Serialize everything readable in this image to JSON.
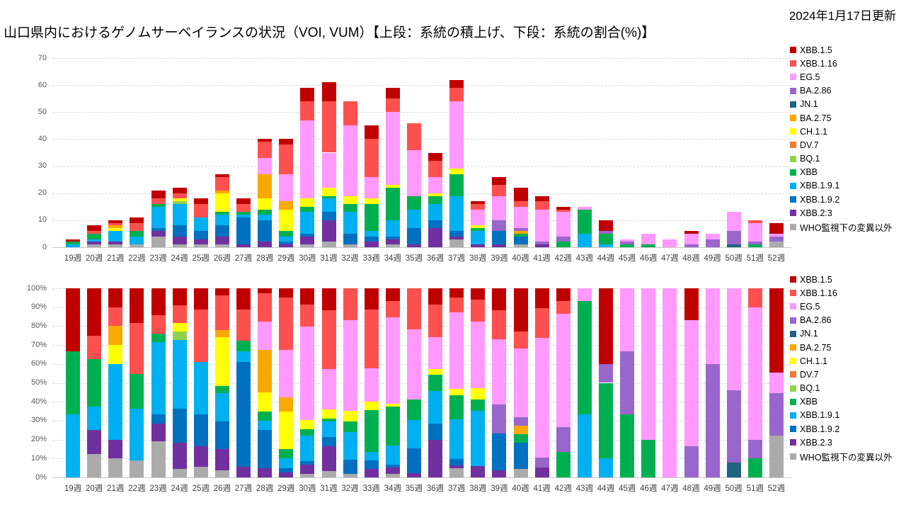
{
  "header": {
    "date_updated": "2024年1月17日更新",
    "title": "山口県内におけるゲノムサーベイランスの状況（VOI, VUM）【上段：系統の積上げ、下段：系統の割合(%)】"
  },
  "palette": {
    "XBB.1.5": "#C00000",
    "XBB.1.16": "#FF5050",
    "EG.5": "#FF99FF",
    "BA.2.86": "#9966CC",
    "JN.1": "#1F6384",
    "BA.2.75": "#F9A800",
    "CH.1.1": "#FFFF00",
    "DV.7": "#ED7D31",
    "BQ.1": "#92D050",
    "XBB": "#00B050",
    "XBB.1.9.1": "#00B0F0",
    "XBB.1.9.2": "#0070C0",
    "XBB.2.3": "#7030A0",
    "WHO監視下の変異以外": "#ABABAB"
  },
  "legend": {
    "entries": [
      "XBB.1.5",
      "XBB.1.16",
      "EG.5",
      "BA.2.86",
      "JN.1",
      "BA.2.75",
      "CH.1.1",
      "DV.7",
      "BQ.1",
      "XBB",
      "XBB.1.9.1",
      "XBB.1.9.2",
      "XBB.2.3",
      "WHO監視下の変異以外"
    ]
  },
  "axes": {
    "top": {
      "tick_labels": [
        "0",
        "10",
        "20",
        "30",
        "40",
        "50",
        "60",
        "70"
      ],
      "max": 70
    },
    "bottom": {
      "tick_labels": [
        "0%",
        "10%",
        "20%",
        "30%",
        "40%",
        "50%",
        "60%",
        "70%",
        "80%",
        "90%",
        "100%"
      ],
      "max": 100
    }
  },
  "chart_data": [
    {
      "type": "bar",
      "stacked": true,
      "panel_label": "上段：系統の積上げ",
      "ylim": [
        0,
        70
      ],
      "grid": true,
      "legend_position": "right",
      "categories": [
        "19週",
        "20週",
        "21週",
        "22週",
        "23週",
        "24週",
        "25週",
        "26週",
        "27週",
        "28週",
        "29週",
        "30週",
        "31週",
        "32週",
        "33週",
        "34週",
        "35週",
        "36週",
        "37週",
        "38週",
        "39週",
        "40週",
        "41週",
        "42週",
        "43週",
        "44週",
        "45週",
        "46週",
        "47週",
        "48週",
        "49週",
        "50週",
        "51週",
        "52週"
      ],
      "series": [
        {
          "name": "WHO監視下の変異以外",
          "values": [
            0,
            1,
            1,
            1,
            4,
            1,
            1,
            1,
            0,
            0,
            0,
            1,
            2,
            1,
            0,
            1,
            0,
            0,
            3,
            0,
            0,
            1,
            0,
            0,
            0,
            0,
            0,
            0,
            0,
            0,
            0,
            0,
            0,
            2
          ]
        },
        {
          "name": "XBB.2.3",
          "values": [
            0,
            1,
            1,
            0,
            2,
            3,
            2,
            3,
            1,
            2,
            1,
            3,
            8,
            0,
            2,
            2,
            1,
            7,
            1,
            1,
            1,
            0,
            1,
            0,
            0,
            0,
            0,
            0,
            0,
            0,
            0,
            0,
            0,
            0
          ]
        },
        {
          "name": "XBB.1.9.2",
          "values": [
            0,
            0,
            0,
            0,
            1,
            4,
            3,
            4,
            10,
            8,
            1,
            1,
            3,
            4,
            2,
            1,
            6,
            3,
            2,
            0,
            5,
            3,
            0,
            0,
            0,
            0,
            0,
            0,
            0,
            0,
            0,
            0,
            0,
            0
          ]
        },
        {
          "name": "XBB.1.9.1",
          "values": [
            1,
            1,
            4,
            3,
            8,
            8,
            5,
            4,
            1,
            2,
            2,
            8,
            5,
            8,
            2,
            6,
            7,
            6,
            13,
            5,
            0,
            0,
            0,
            0,
            5,
            1,
            0,
            0,
            0,
            0,
            0,
            0,
            0,
            0
          ]
        },
        {
          "name": "XBB",
          "values": [
            1,
            2,
            0,
            2,
            1,
            0,
            0,
            1,
            1,
            2,
            2,
            2,
            1,
            3,
            10,
            12,
            5,
            3,
            8,
            1,
            0,
            1,
            0,
            2,
            9,
            4,
            1,
            1,
            0,
            0,
            0,
            0,
            1,
            0
          ]
        },
        {
          "name": "BQ.1",
          "values": [
            0,
            0,
            0,
            0,
            0,
            1,
            0,
            0,
            0,
            0,
            0,
            0,
            0,
            0,
            0,
            0,
            0,
            0,
            0,
            0,
            0,
            0,
            0,
            0,
            0,
            0,
            0,
            0,
            0,
            0,
            0,
            0,
            0,
            0
          ]
        },
        {
          "name": "DV.7",
          "values": [
            0,
            0,
            0,
            0,
            0,
            0,
            0,
            0,
            0,
            0,
            0,
            0,
            0,
            0,
            0,
            0,
            0,
            0,
            0,
            0,
            0,
            0,
            0,
            0,
            0,
            0,
            0,
            0,
            0,
            0,
            0,
            0,
            0,
            0
          ]
        },
        {
          "name": "CH.1.1",
          "values": [
            0,
            0,
            1,
            0,
            0,
            1,
            0,
            7,
            0,
            4,
            8,
            3,
            3,
            3,
            2,
            1,
            0,
            1,
            2,
            1,
            0,
            0,
            0,
            0,
            0,
            0,
            0,
            0,
            0,
            0,
            0,
            0,
            0,
            0
          ]
        },
        {
          "name": "BA.2.75",
          "values": [
            0,
            0,
            1,
            0,
            0,
            0,
            0,
            1,
            0,
            9,
            3,
            0,
            0,
            0,
            0,
            0,
            0,
            0,
            0,
            0,
            0,
            1,
            0,
            0,
            0,
            0,
            0,
            0,
            0,
            0,
            0,
            0,
            0,
            0
          ]
        },
        {
          "name": "JN.1",
          "values": [
            0,
            0,
            0,
            0,
            0,
            0,
            0,
            0,
            0,
            0,
            0,
            0,
            0,
            0,
            0,
            0,
            0,
            0,
            0,
            0,
            0,
            0,
            0,
            0,
            0,
            0,
            0,
            0,
            0,
            0,
            0,
            1,
            0,
            0
          ]
        },
        {
          "name": "BA.2.86",
          "values": [
            0,
            0,
            0,
            0,
            0,
            0,
            0,
            0,
            0,
            0,
            0,
            0,
            0,
            0,
            0,
            0,
            0,
            0,
            0,
            0,
            4,
            1,
            1,
            2,
            0,
            1,
            1,
            0,
            0,
            1,
            3,
            5,
            1,
            2
          ]
        },
        {
          "name": "EG.5",
          "values": [
            0,
            0,
            0,
            0,
            0,
            0,
            0,
            0,
            0,
            6,
            10,
            29,
            13,
            26,
            8,
            27,
            17,
            6,
            25,
            6,
            9,
            8,
            12,
            9,
            1,
            0,
            1,
            4,
            3,
            4,
            2,
            7,
            7,
            1
          ]
        },
        {
          "name": "XBB.1.16",
          "values": [
            0,
            1,
            1,
            3,
            2,
            2,
            5,
            5,
            3,
            6,
            11,
            7,
            19,
            9,
            14,
            5,
            10,
            6,
            5,
            2,
            4,
            2,
            3,
            1,
            0,
            0,
            0,
            0,
            0,
            0,
            0,
            0,
            1,
            0
          ]
        },
        {
          "name": "XBB.1.5",
          "values": [
            1,
            2,
            1,
            2,
            3,
            2,
            2,
            1,
            2,
            1,
            2,
            5,
            7,
            0,
            5,
            4,
            0,
            3,
            3,
            1,
            3,
            5,
            2,
            1,
            0,
            4,
            0,
            0,
            0,
            1,
            0,
            0,
            0,
            4
          ]
        }
      ]
    },
    {
      "type": "bar",
      "stacked": "percent",
      "panel_label": "下段：系統の割合(%)",
      "ylim": [
        0,
        100
      ],
      "grid": true,
      "legend_position": "right",
      "categories": [
        "19週",
        "20週",
        "21週",
        "22週",
        "23週",
        "24週",
        "25週",
        "26週",
        "27週",
        "28週",
        "29週",
        "30週",
        "31週",
        "32週",
        "33週",
        "34週",
        "35週",
        "36週",
        "37週",
        "38週",
        "39週",
        "40週",
        "41週",
        "42週",
        "43週",
        "44週",
        "45週",
        "46週",
        "47週",
        "48週",
        "49週",
        "50週",
        "51週",
        "52週"
      ],
      "series_from": 0,
      "note": "Percentages are the week-normalized values of chart 0 counts."
    }
  ]
}
